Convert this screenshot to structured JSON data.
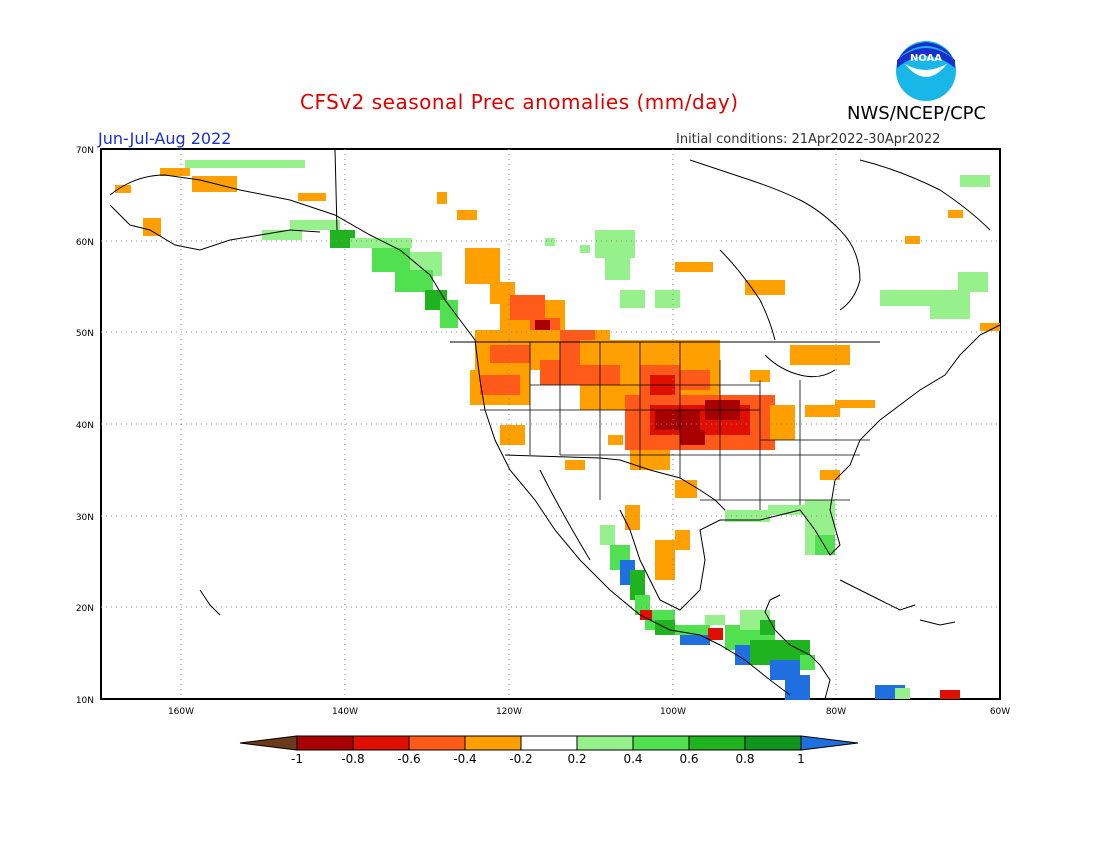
{
  "header": {
    "title": "CFSv2 seasonal Prec anomalies (mm/day)",
    "season": "Jun-Jul-Aug 2022",
    "initial_conditions": "Initial conditions: 21Apr2022-30Apr2022",
    "agency": "NWS/NCEP/CPC",
    "logo_text": "NOAA"
  },
  "axes": {
    "lat_labels": [
      "70N",
      "60N",
      "50N",
      "40N",
      "30N",
      "20N",
      "10N"
    ],
    "lon_labels": [
      "160W",
      "140W",
      "120W",
      "100W",
      "80W",
      "60W"
    ]
  },
  "colorbar": {
    "labels": [
      "-1",
      "-0.8",
      "-0.6",
      "-0.4",
      "-0.2",
      "0.2",
      "0.4",
      "0.6",
      "0.8",
      "1"
    ],
    "colors": [
      "#6b3a1a",
      "#a80000",
      "#e01000",
      "#ff5a1a",
      "#ff9f00",
      "#ffffff",
      "#96f08c",
      "#50e050",
      "#1fb31f",
      "#11941d",
      "#1f6fe0"
    ]
  }
}
